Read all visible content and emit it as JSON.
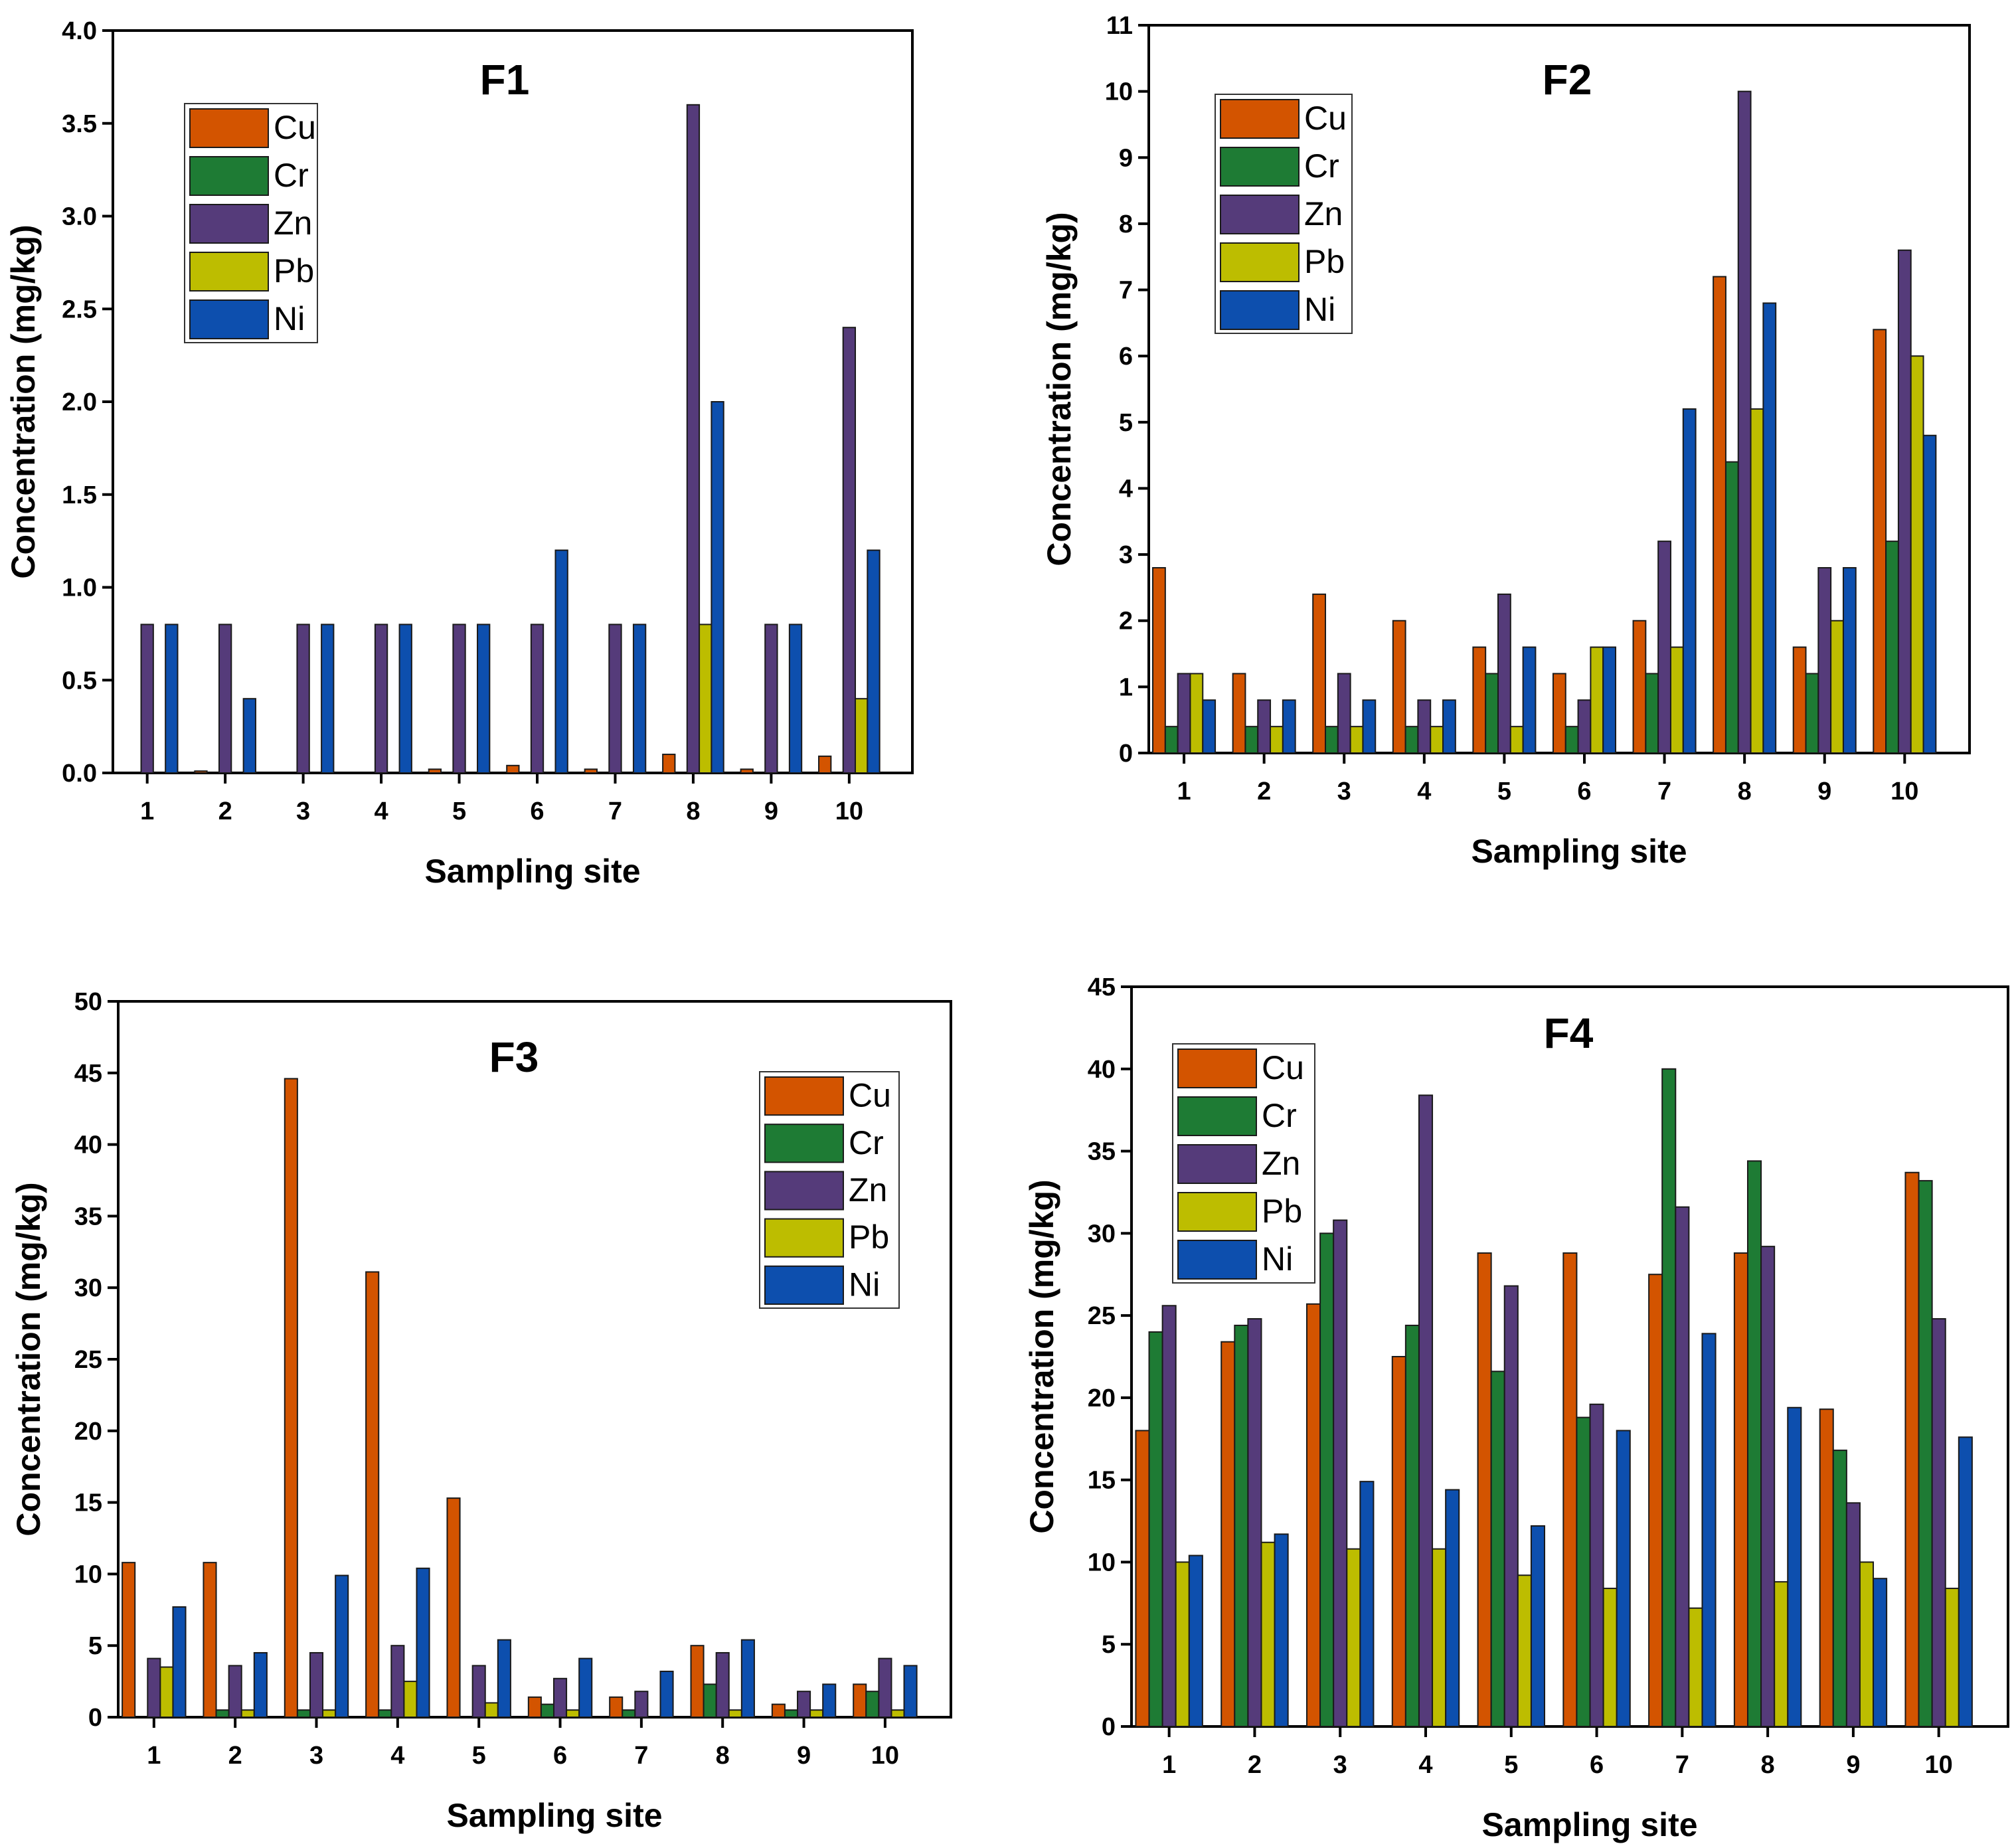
{
  "chart_data": [
    {
      "id": "F1",
      "type": "bar",
      "title": "F1",
      "xlabel": "Sampling site",
      "ylabel": "Concentration (mg/kg)",
      "categories": [
        "1",
        "2",
        "3",
        "4",
        "5",
        "6",
        "7",
        "8",
        "9",
        "10"
      ],
      "ylim": [
        0,
        4.0
      ],
      "yticks": [
        "0.0",
        "0.5",
        "1.0",
        "1.5",
        "2.0",
        "2.5",
        "3.0",
        "3.5",
        "4.0"
      ],
      "legend_position": "top-left",
      "series": [
        {
          "name": "Cu",
          "color": "#D35400",
          "values": [
            0,
            0.01,
            0,
            0,
            0.02,
            0.04,
            0.02,
            0.1,
            0.02,
            0.09
          ]
        },
        {
          "name": "Cr",
          "color": "#1E7B34",
          "values": [
            0,
            0,
            0,
            0,
            0,
            0,
            0,
            0,
            0,
            0
          ]
        },
        {
          "name": "Zn",
          "color": "#553B7A",
          "values": [
            0.8,
            0.8,
            0.8,
            0.8,
            0.8,
            0.8,
            0.8,
            3.6,
            0.8,
            2.4
          ]
        },
        {
          "name": "Pb",
          "color": "#BDBD00",
          "values": [
            0,
            0,
            0,
            0,
            0,
            0,
            0,
            0.8,
            0,
            0.4
          ]
        },
        {
          "name": "Ni",
          "color": "#0D4FAE",
          "values": [
            0.8,
            0.4,
            0.8,
            0.8,
            0.8,
            1.2,
            0.8,
            2.0,
            0.8,
            1.2
          ]
        }
      ]
    },
    {
      "id": "F2",
      "type": "bar",
      "title": "F2",
      "xlabel": "Sampling site",
      "ylabel": "Concentration (mg/kg)",
      "categories": [
        "1",
        "2",
        "3",
        "4",
        "5",
        "6",
        "7",
        "8",
        "9",
        "10"
      ],
      "ylim": [
        0,
        11
      ],
      "yticks": [
        "0",
        "1",
        "2",
        "3",
        "4",
        "5",
        "6",
        "7",
        "8",
        "9",
        "10",
        "11"
      ],
      "legend_position": "top-left",
      "series": [
        {
          "name": "Cu",
          "color": "#D35400",
          "values": [
            2.8,
            1.2,
            2.4,
            2.0,
            1.6,
            1.2,
            2.0,
            7.2,
            1.6,
            6.4
          ]
        },
        {
          "name": "Cr",
          "color": "#1E7B34",
          "values": [
            0.4,
            0.4,
            0.4,
            0.4,
            1.2,
            0.4,
            1.2,
            4.4,
            1.2,
            3.2
          ]
        },
        {
          "name": "Zn",
          "color": "#553B7A",
          "values": [
            1.2,
            0.8,
            1.2,
            0.8,
            2.4,
            0.8,
            3.2,
            10.0,
            2.8,
            7.6
          ]
        },
        {
          "name": "Pb",
          "color": "#BDBD00",
          "values": [
            1.2,
            0.4,
            0.4,
            0.4,
            0.4,
            1.6,
            1.6,
            5.2,
            2.0,
            6.0
          ]
        },
        {
          "name": "Ni",
          "color": "#0D4FAE",
          "values": [
            0.8,
            0.8,
            0.8,
            0.8,
            1.6,
            1.6,
            5.2,
            6.8,
            2.8,
            4.8
          ]
        }
      ]
    },
    {
      "id": "F3",
      "type": "bar",
      "title": "F3",
      "xlabel": "Sampling site",
      "ylabel": "Concentration (mg/kg)",
      "categories": [
        "1",
        "2",
        "3",
        "4",
        "5",
        "6",
        "7",
        "8",
        "9",
        "10"
      ],
      "ylim": [
        0,
        50
      ],
      "yticks": [
        "0",
        "5",
        "10",
        "15",
        "20",
        "25",
        "30",
        "35",
        "40",
        "45",
        "50"
      ],
      "legend_position": "top-right",
      "series": [
        {
          "name": "Cu",
          "color": "#D35400",
          "values": [
            10.8,
            10.8,
            44.6,
            31.1,
            15.3,
            1.4,
            1.4,
            5.0,
            0.9,
            2.3
          ]
        },
        {
          "name": "Cr",
          "color": "#1E7B34",
          "values": [
            0,
            0.5,
            0.5,
            0.5,
            0,
            0.9,
            0.5,
            2.3,
            0.5,
            1.8
          ]
        },
        {
          "name": "Zn",
          "color": "#553B7A",
          "values": [
            4.1,
            3.6,
            4.5,
            5.0,
            3.6,
            2.7,
            1.8,
            4.5,
            1.8,
            4.1
          ]
        },
        {
          "name": "Pb",
          "color": "#BDBD00",
          "values": [
            3.5,
            0.5,
            0.5,
            2.5,
            1.0,
            0.5,
            0,
            0.5,
            0.5,
            0.5
          ]
        },
        {
          "name": "Ni",
          "color": "#0D4FAE",
          "values": [
            7.7,
            4.5,
            9.9,
            10.4,
            5.4,
            4.1,
            3.2,
            5.4,
            2.3,
            3.6
          ]
        }
      ]
    },
    {
      "id": "F4",
      "type": "bar",
      "title": "F4",
      "xlabel": "Sampling site",
      "ylabel": "Concentration (mg/kg)",
      "categories": [
        "1",
        "2",
        "3",
        "4",
        "5",
        "6",
        "7",
        "8",
        "9",
        "10"
      ],
      "ylim": [
        0,
        45
      ],
      "yticks": [
        "0",
        "5",
        "10",
        "15",
        "20",
        "25",
        "30",
        "35",
        "40",
        "45"
      ],
      "legend_position": "top-left",
      "series": [
        {
          "name": "Cu",
          "color": "#D35400",
          "values": [
            18.0,
            23.4,
            25.7,
            22.5,
            28.8,
            28.8,
            27.5,
            28.8,
            19.3,
            33.7
          ]
        },
        {
          "name": "Cr",
          "color": "#1E7B34",
          "values": [
            24.0,
            24.4,
            30.0,
            24.4,
            21.6,
            18.8,
            40.0,
            34.4,
            16.8,
            33.2
          ]
        },
        {
          "name": "Zn",
          "color": "#553B7A",
          "values": [
            25.6,
            24.8,
            30.8,
            38.4,
            26.8,
            19.6,
            31.6,
            29.2,
            13.6,
            24.8
          ]
        },
        {
          "name": "Pb",
          "color": "#BDBD00",
          "values": [
            10.0,
            11.2,
            10.8,
            10.8,
            9.2,
            8.4,
            7.2,
            8.8,
            10.0,
            8.4
          ]
        },
        {
          "name": "Ni",
          "color": "#0D4FAE",
          "values": [
            10.4,
            11.7,
            14.9,
            14.4,
            12.2,
            18.0,
            23.9,
            19.4,
            9.0,
            17.6
          ]
        }
      ]
    }
  ]
}
